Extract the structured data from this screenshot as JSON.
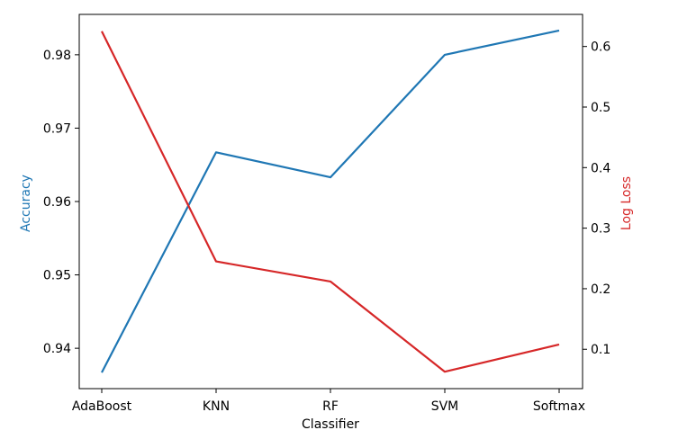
{
  "chart_data": {
    "type": "line",
    "categories": [
      "AdaBoost",
      "KNN",
      "RF",
      "SVM",
      "Softmax"
    ],
    "xlabel": "Classifier",
    "grid": false,
    "series": [
      {
        "name": "Accuracy",
        "axis": "left",
        "color": "#1f77b4",
        "values": [
          0.9367,
          0.9667,
          0.9633,
          0.98,
          0.9833
        ]
      },
      {
        "name": "Log Loss",
        "axis": "right",
        "color": "#d62728",
        "values": [
          0.625,
          0.245,
          0.212,
          0.063,
          0.108
        ]
      }
    ],
    "left_axis": {
      "label": "Accuracy",
      "label_color": "#1f77b4",
      "ylim": [
        0.9345,
        0.9855
      ],
      "ticks": [
        0.94,
        0.95,
        0.96,
        0.97,
        0.98
      ],
      "tick_labels": [
        "0.94",
        "0.95",
        "0.96",
        "0.97",
        "0.98"
      ]
    },
    "right_axis": {
      "label": "Log Loss",
      "label_color": "#d62728",
      "ylim": [
        0.035,
        0.653
      ],
      "ticks": [
        0.1,
        0.2,
        0.3,
        0.4,
        0.5,
        0.6
      ],
      "tick_labels": [
        "0.1",
        "0.2",
        "0.3",
        "0.4",
        "0.5",
        "0.6"
      ]
    }
  }
}
